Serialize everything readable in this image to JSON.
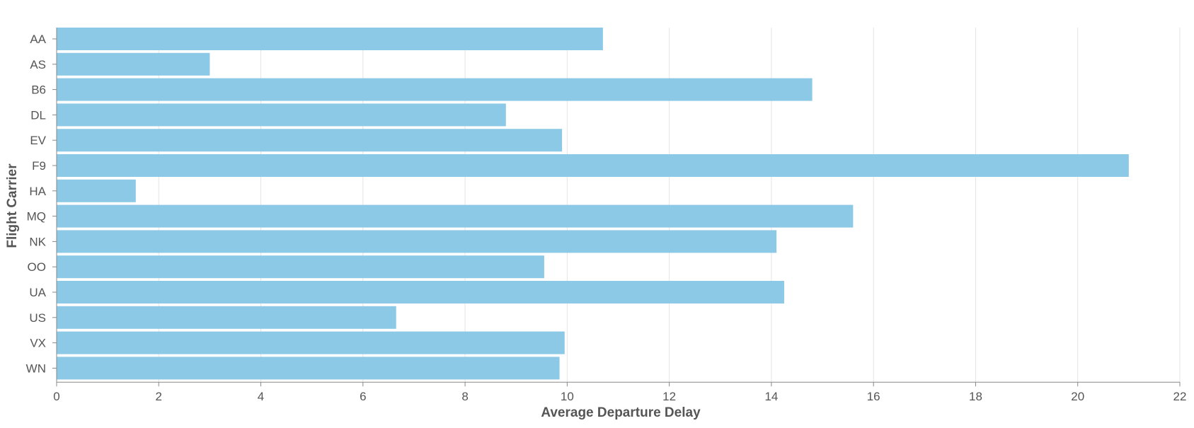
{
  "chart_data": {
    "type": "bar",
    "orientation": "horizontal",
    "title": "",
    "xlabel": "Average Departure Delay",
    "ylabel": "Flight Carrier",
    "categories": [
      "AA",
      "AS",
      "B6",
      "DL",
      "EV",
      "F9",
      "HA",
      "MQ",
      "NK",
      "OO",
      "UA",
      "US",
      "VX",
      "WN"
    ],
    "values": [
      10.7,
      3.0,
      14.8,
      8.8,
      9.9,
      21.0,
      1.55,
      15.6,
      14.1,
      9.55,
      14.25,
      6.65,
      9.95,
      9.85
    ],
    "x_ticks": [
      "0",
      "2",
      "4",
      "6",
      "8",
      "10",
      "12",
      "14",
      "16",
      "18",
      "20",
      "22"
    ],
    "xlim": [
      0,
      22
    ],
    "grid": true,
    "bar_color": "#8BC9E6",
    "grid_color": "#E4E4E4",
    "axis_color": "#888888",
    "text_color": "#555555"
  }
}
